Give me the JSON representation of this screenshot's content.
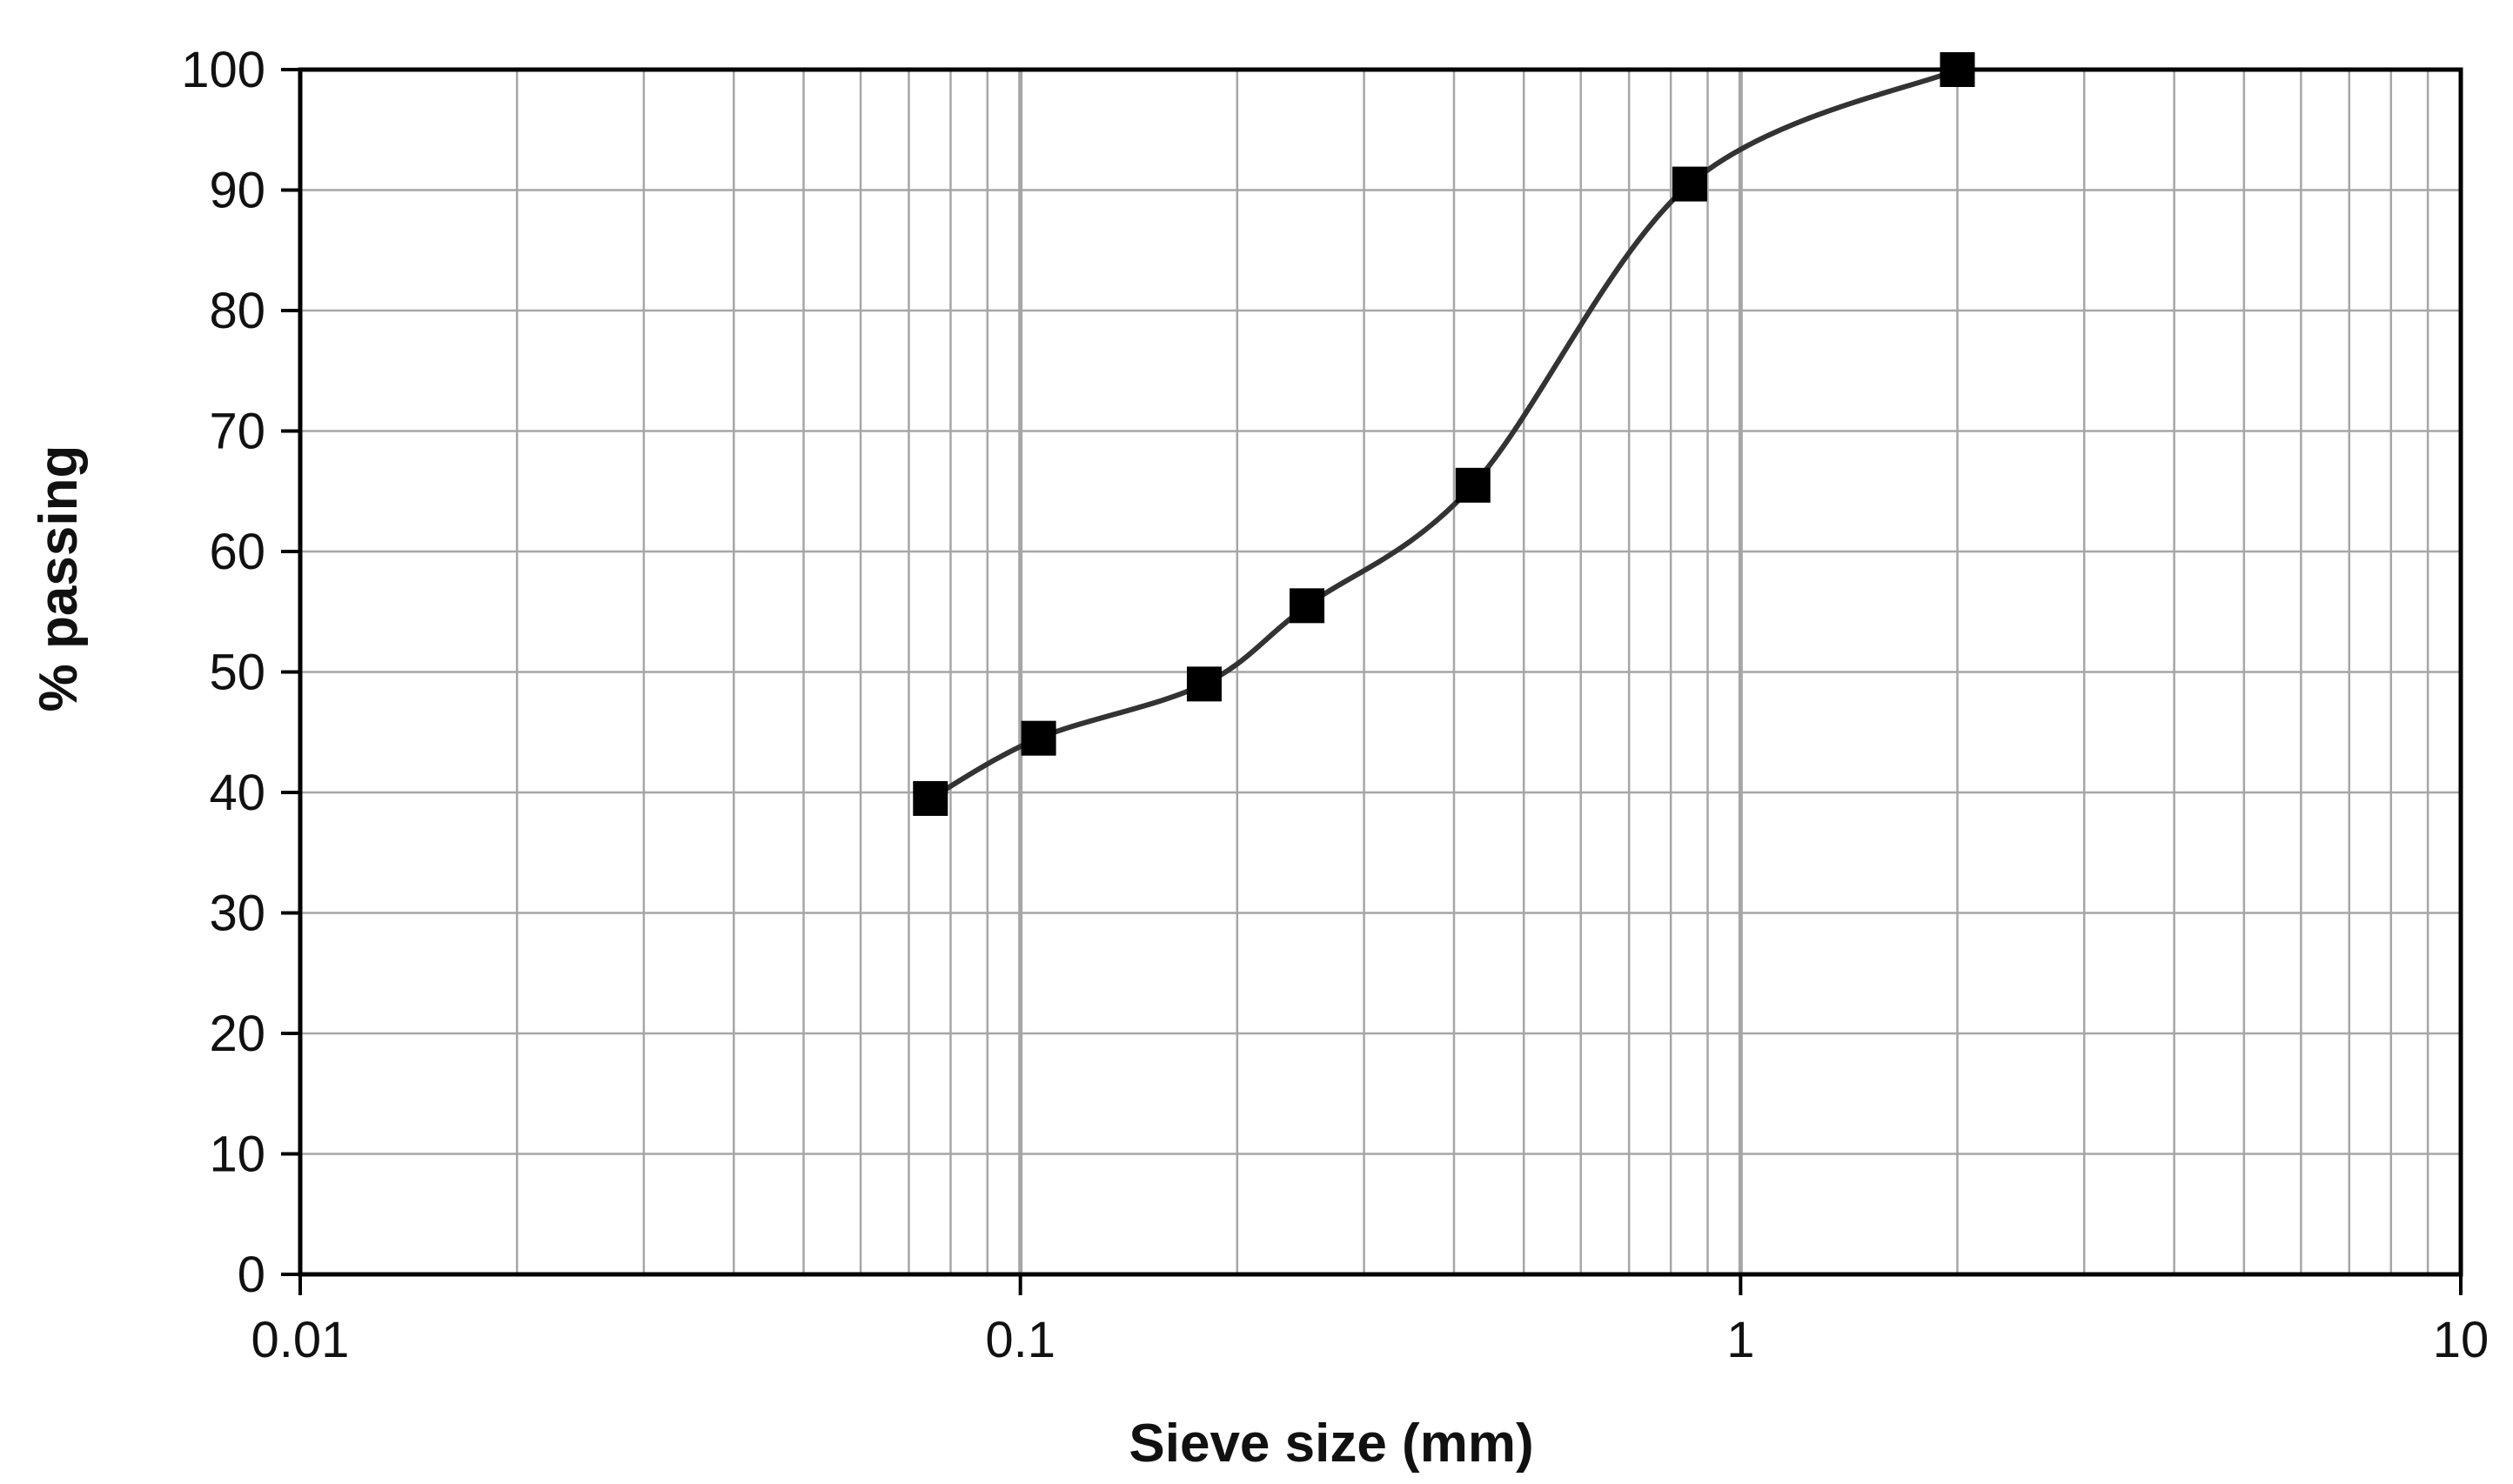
{
  "chart_data": {
    "type": "line",
    "title": "",
    "xlabel": "Sieve size (mm)",
    "ylabel": "% passing",
    "x_scale": "log",
    "xlim": [
      0.01,
      10
    ],
    "ylim": [
      0,
      100
    ],
    "grid": true,
    "legend": "none",
    "x_tick_labels": [
      "0.01",
      "0.1",
      "1",
      "10"
    ],
    "y_tick_labels": [
      "0",
      "10",
      "20",
      "30",
      "40",
      "50",
      "60",
      "70",
      "80",
      "90",
      "100"
    ],
    "series": [
      {
        "x": [
          0.075,
          0.106,
          0.18,
          0.25,
          0.425,
          0.85,
          2.0
        ],
        "y": [
          39.5,
          44.5,
          49,
          55.5,
          65.5,
          90.5,
          100
        ],
        "marker": "square",
        "color": "#333333"
      }
    ]
  },
  "colors": {
    "grid": "#a6a6a6",
    "axis": "#000000",
    "line": "#333333",
    "marker": "#000000"
  }
}
